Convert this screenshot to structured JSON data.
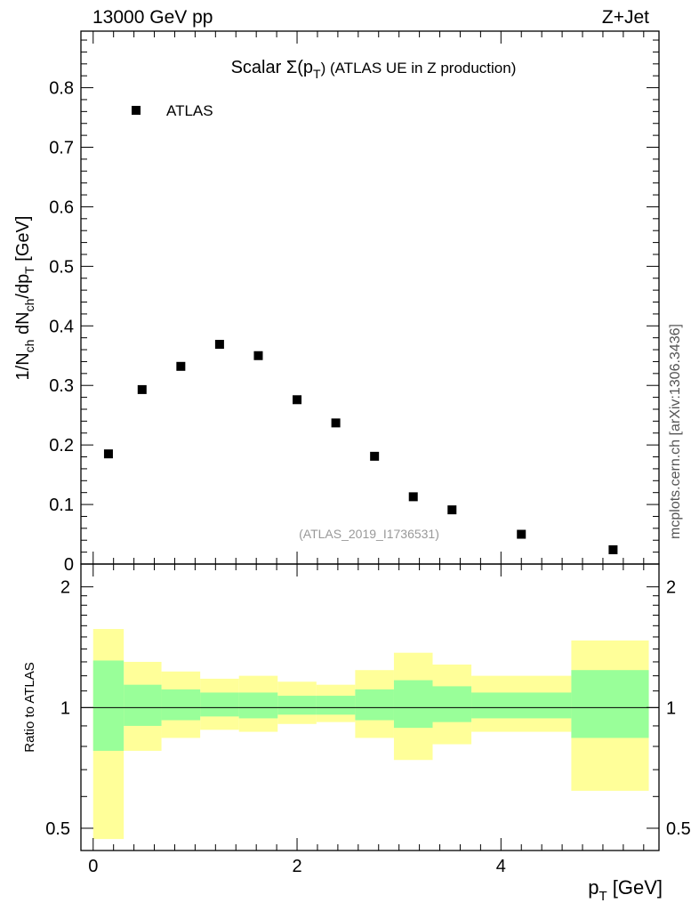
{
  "header": {
    "left": "13000 GeV pp",
    "right": "Z+Jet"
  },
  "side_label": "mcplots.cern.ch [arXiv:1306.3436]",
  "chart_data": [
    {
      "type": "scatter",
      "title": "Scalar Σ(p_T) (ATLAS UE in Z production)",
      "title_main": "Scalar Σ(p",
      "title_sub": "T",
      "title_rest": ") (ATLAS UE in Z production)",
      "ylabel": "1/N_ch dN_ch/dp_T [GeV]",
      "ylabel_parts": [
        "1/N",
        "ch",
        " dN",
        "ch",
        "/dp",
        "T",
        " [GeV]"
      ],
      "xlim": [
        -0.12,
        5.55
      ],
      "ylim": [
        0,
        0.895
      ],
      "yticks": [
        0,
        0.1,
        0.2,
        0.3,
        0.4,
        0.5,
        0.6,
        0.7,
        0.8
      ],
      "ytick_labels": [
        "0",
        "0.1",
        "0.2",
        "0.3",
        "0.4",
        "0.5",
        "0.6",
        "0.7",
        "0.8"
      ],
      "legend": {
        "label": "ATLAS",
        "placement": "top-left"
      },
      "watermark": "(ATLAS_2019_I1736531)",
      "series": [
        {
          "name": "ATLAS",
          "color": "#000000",
          "x": [
            0.15,
            0.48,
            0.86,
            1.24,
            1.62,
            2.0,
            2.38,
            2.76,
            3.14,
            3.52,
            4.2,
            5.1
          ],
          "y": [
            0.185,
            0.293,
            0.332,
            0.369,
            0.35,
            0.276,
            0.237,
            0.181,
            0.113,
            0.091,
            0.05,
            0.024
          ]
        }
      ]
    },
    {
      "type": "area",
      "ylabel": "Ratio to ATLAS",
      "xlabel": "p_T [GeV]",
      "xlabel_main": "p",
      "xlabel_sub": "T",
      "xlabel_rest": " [GeV]",
      "xlim": [
        -0.12,
        5.55
      ],
      "ylim": [
        0.44,
        2.28
      ],
      "yscale": "log",
      "yticks": [
        0.5,
        1,
        2
      ],
      "ytick_labels": [
        "0.5",
        "1",
        "2"
      ],
      "xticks": [
        0,
        2,
        4
      ],
      "xtick_labels": [
        "0",
        "2",
        "4"
      ],
      "reference_line": 1,
      "bins": [
        {
          "lo": 0.0,
          "hi": 0.3,
          "stat_lo": 0.78,
          "stat_hi": 1.31,
          "tot_lo": 0.47,
          "tot_hi": 1.57
        },
        {
          "lo": 0.3,
          "hi": 0.67,
          "stat_lo": 0.9,
          "stat_hi": 1.14,
          "tot_lo": 0.78,
          "tot_hi": 1.3
        },
        {
          "lo": 0.67,
          "hi": 1.05,
          "stat_lo": 0.93,
          "stat_hi": 1.11,
          "tot_lo": 0.84,
          "tot_hi": 1.23
        },
        {
          "lo": 1.05,
          "hi": 1.43,
          "stat_lo": 0.95,
          "stat_hi": 1.09,
          "tot_lo": 0.88,
          "tot_hi": 1.18
        },
        {
          "lo": 1.43,
          "hi": 1.81,
          "stat_lo": 0.94,
          "stat_hi": 1.09,
          "tot_lo": 0.87,
          "tot_hi": 1.2
        },
        {
          "lo": 1.81,
          "hi": 2.19,
          "stat_lo": 0.96,
          "stat_hi": 1.07,
          "tot_lo": 0.91,
          "tot_hi": 1.16
        },
        {
          "lo": 2.19,
          "hi": 2.57,
          "stat_lo": 0.96,
          "stat_hi": 1.07,
          "tot_lo": 0.92,
          "tot_hi": 1.14
        },
        {
          "lo": 2.57,
          "hi": 2.95,
          "stat_lo": 0.93,
          "stat_hi": 1.11,
          "tot_lo": 0.84,
          "tot_hi": 1.24
        },
        {
          "lo": 2.95,
          "hi": 3.33,
          "stat_lo": 0.89,
          "stat_hi": 1.17,
          "tot_lo": 0.74,
          "tot_hi": 1.37
        },
        {
          "lo": 3.33,
          "hi": 3.71,
          "stat_lo": 0.92,
          "stat_hi": 1.13,
          "tot_lo": 0.81,
          "tot_hi": 1.28
        },
        {
          "lo": 3.71,
          "hi": 4.69,
          "stat_lo": 0.94,
          "stat_hi": 1.09,
          "tot_lo": 0.87,
          "tot_hi": 1.2
        },
        {
          "lo": 4.69,
          "hi": 5.45,
          "stat_lo": 0.84,
          "stat_hi": 1.24,
          "tot_lo": 0.62,
          "tot_hi": 1.47
        }
      ],
      "colors": {
        "stat": "#99ff99",
        "total": "#ffff99",
        "line": "#000000"
      }
    }
  ]
}
